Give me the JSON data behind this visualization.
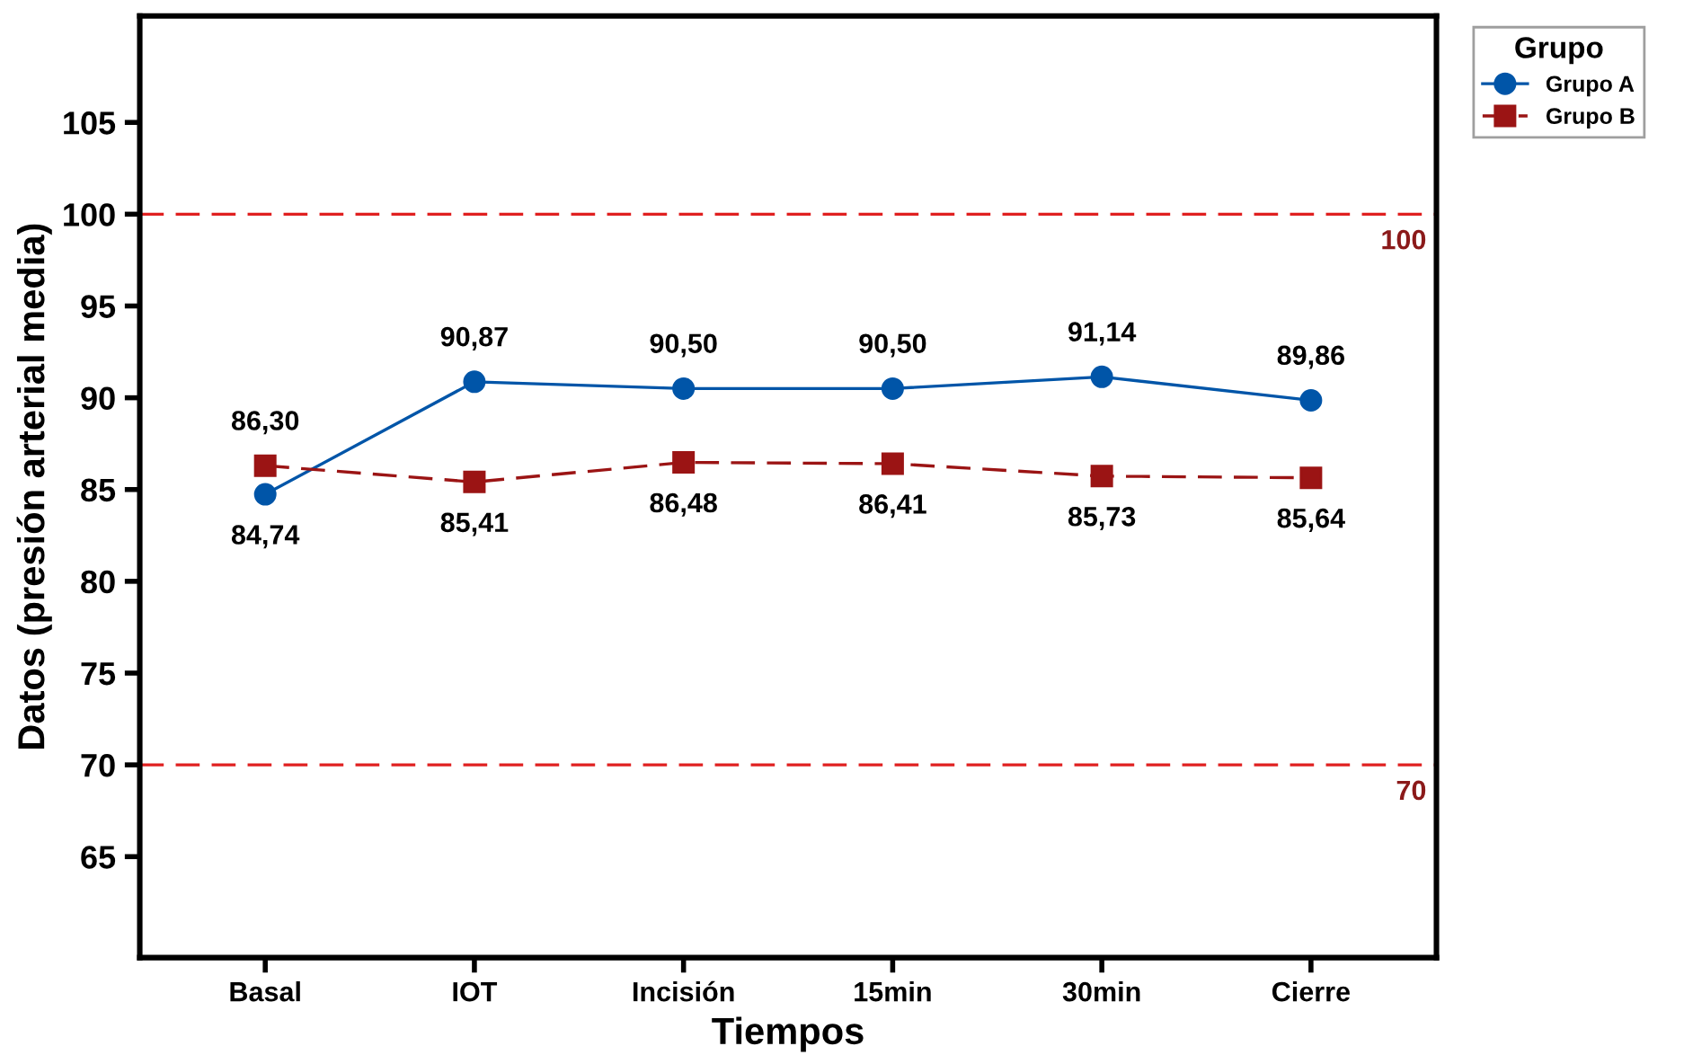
{
  "chart_data": {
    "type": "line",
    "xlabel": "Tiempos",
    "ylabel": "Datos (presión arterial media)",
    "legend_title": "Grupo",
    "categories": [
      "Basal",
      "IOT",
      "Incisión",
      "15min",
      "30min",
      "Cierre"
    ],
    "series": [
      {
        "name": "Grupo A",
        "color": "#0055a8",
        "marker": "circle",
        "line_style": "solid",
        "values": [
          84.74,
          90.87,
          90.5,
          90.5,
          91.14,
          89.86
        ],
        "value_labels": [
          "84,74",
          "90,87",
          "90,50",
          "90,50",
          "91,14",
          "89,86"
        ]
      },
      {
        "name": "Grupo B",
        "color": "#9b1414",
        "marker": "square",
        "line_style": "dashed",
        "values": [
          86.3,
          85.41,
          86.48,
          86.41,
          85.73,
          85.64
        ],
        "value_labels": [
          "86,30",
          "85,41",
          "86,48",
          "86,41",
          "85,73",
          "85,64"
        ]
      }
    ],
    "ylim": [
      59.5,
      110.8
    ],
    "yticks": [
      65,
      70,
      75,
      80,
      85,
      90,
      95,
      100,
      105
    ],
    "ref_lines": [
      {
        "axis": "y",
        "value": 100,
        "label": "100",
        "color": "#e02020",
        "line_style": "dashed"
      },
      {
        "axis": "y",
        "value": 70,
        "label": "70",
        "color": "#e02020",
        "line_style": "dashed"
      }
    ],
    "grid": false,
    "legend": "top right"
  }
}
